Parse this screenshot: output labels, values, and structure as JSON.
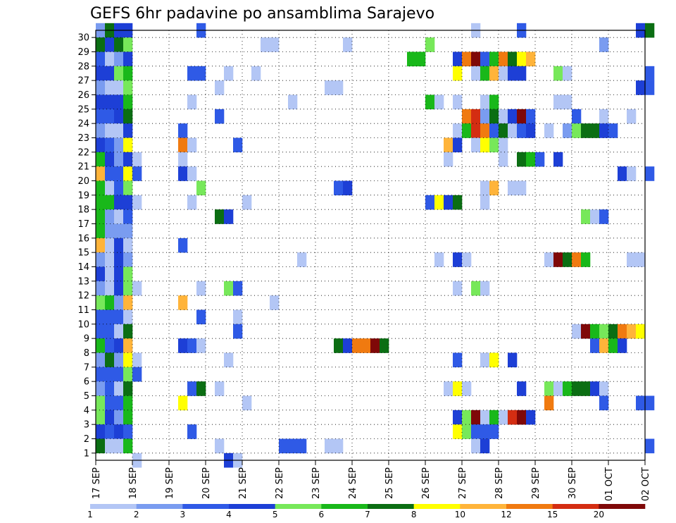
{
  "chart_data": {
    "type": "heatmap",
    "title": "GEFS 6hr padavine po ansamblima Sarajevo",
    "xlabel": "",
    "ylabel": "",
    "x_tick_labels": [
      "17 SEP",
      "18 SEP",
      "19 SEP",
      "20 SEP",
      "21 SEP",
      "22 SEP",
      "23 SEP",
      "24 SEP",
      "25 SEP",
      "26 SEP",
      "27 SEP",
      "28 SEP",
      "29 SEP",
      "30 SEP",
      "01 OCT",
      "02 OCT"
    ],
    "y_tick_labels": [
      "1",
      "2",
      "3",
      "4",
      "5",
      "6",
      "7",
      "8",
      "9",
      "10",
      "11",
      "12",
      "13",
      "14",
      "15",
      "16",
      "17",
      "18",
      "19",
      "20",
      "21",
      "22",
      "23",
      "24",
      "25",
      "26",
      "27",
      "28",
      "29",
      "30"
    ],
    "ylim": [
      1,
      30
    ],
    "x_range": [
      "17 SEP",
      "02 OCT"
    ],
    "steps_per_day": 4,
    "grid": true,
    "legend_placement": "bottom",
    "colorbar": {
      "labels": [
        "1",
        "2",
        "3",
        "4",
        "5",
        "6",
        "7",
        "8",
        "10",
        "12",
        "15",
        "20"
      ],
      "colors": [
        "#b3c6f5",
        "#7a9cf0",
        "#2f5ae6",
        "#1d3fd6",
        "#77e85a",
        "#19b81a",
        "#0b6e13",
        "#ffff00",
        "#ffb43a",
        "#f07a10",
        "#d42d12",
        "#7f0808"
      ]
    },
    "cells": [
      [
        30,
        0,
        1
      ],
      [
        30,
        1,
        6
      ],
      [
        30,
        2,
        3
      ],
      [
        30,
        3,
        3
      ],
      [
        30,
        11,
        2
      ],
      [
        30,
        41,
        0
      ],
      [
        30,
        46,
        2
      ],
      [
        30,
        59,
        3
      ],
      [
        30,
        60,
        6
      ],
      [
        29,
        0,
        6
      ],
      [
        29,
        1,
        3
      ],
      [
        29,
        2,
        6
      ],
      [
        29,
        3,
        4
      ],
      [
        29,
        18,
        0
      ],
      [
        29,
        19,
        0
      ],
      [
        29,
        27,
        0
      ],
      [
        29,
        36,
        4
      ],
      [
        29,
        55,
        1
      ],
      [
        28,
        0,
        2
      ],
      [
        28,
        1,
        0
      ],
      [
        28,
        2,
        1
      ],
      [
        28,
        3,
        3
      ],
      [
        28,
        34,
        5
      ],
      [
        28,
        35,
        5
      ],
      [
        28,
        39,
        3
      ],
      [
        28,
        40,
        9
      ],
      [
        28,
        41,
        11
      ],
      [
        28,
        42,
        2
      ],
      [
        28,
        43,
        5
      ],
      [
        28,
        44,
        9
      ],
      [
        28,
        45,
        6
      ],
      [
        28,
        46,
        7
      ],
      [
        28,
        47,
        8
      ],
      [
        27,
        0,
        3
      ],
      [
        27,
        1,
        3
      ],
      [
        27,
        2,
        4
      ],
      [
        27,
        3,
        5
      ],
      [
        27,
        10,
        2
      ],
      [
        27,
        11,
        2
      ],
      [
        27,
        14,
        0
      ],
      [
        27,
        17,
        0
      ],
      [
        27,
        39,
        7
      ],
      [
        27,
        41,
        0
      ],
      [
        27,
        42,
        5
      ],
      [
        27,
        43,
        8
      ],
      [
        27,
        44,
        0
      ],
      [
        27,
        45,
        3
      ],
      [
        27,
        46,
        3
      ],
      [
        27,
        50,
        4
      ],
      [
        27,
        51,
        0
      ],
      [
        27,
        60,
        2
      ],
      [
        26,
        0,
        1
      ],
      [
        26,
        1,
        0
      ],
      [
        26,
        2,
        0
      ],
      [
        26,
        3,
        4
      ],
      [
        26,
        13,
        0
      ],
      [
        26,
        25,
        0
      ],
      [
        26,
        26,
        0
      ],
      [
        26,
        59,
        3
      ],
      [
        26,
        60,
        2
      ],
      [
        25,
        0,
        3
      ],
      [
        25,
        1,
        3
      ],
      [
        25,
        2,
        3
      ],
      [
        25,
        3,
        5
      ],
      [
        25,
        10,
        0
      ],
      [
        25,
        21,
        0
      ],
      [
        25,
        36,
        5
      ],
      [
        25,
        37,
        0
      ],
      [
        25,
        39,
        0
      ],
      [
        25,
        42,
        0
      ],
      [
        25,
        43,
        5
      ],
      [
        25,
        50,
        0
      ],
      [
        25,
        51,
        0
      ],
      [
        24,
        0,
        2
      ],
      [
        24,
        1,
        2
      ],
      [
        24,
        2,
        3
      ],
      [
        24,
        3,
        6
      ],
      [
        24,
        13,
        2
      ],
      [
        24,
        40,
        9
      ],
      [
        24,
        41,
        10
      ],
      [
        24,
        42,
        1
      ],
      [
        24,
        43,
        6
      ],
      [
        24,
        44,
        0
      ],
      [
        24,
        45,
        3
      ],
      [
        24,
        46,
        11
      ],
      [
        24,
        47,
        2
      ],
      [
        24,
        52,
        2
      ],
      [
        24,
        55,
        0
      ],
      [
        24,
        58,
        0
      ],
      [
        23,
        0,
        1
      ],
      [
        23,
        1,
        0
      ],
      [
        23,
        2,
        0
      ],
      [
        23,
        3,
        3
      ],
      [
        23,
        9,
        2
      ],
      [
        23,
        39,
        0
      ],
      [
        23,
        40,
        5
      ],
      [
        23,
        41,
        10
      ],
      [
        23,
        42,
        9
      ],
      [
        23,
        43,
        2
      ],
      [
        23,
        44,
        6
      ],
      [
        23,
        45,
        0
      ],
      [
        23,
        46,
        2
      ],
      [
        23,
        47,
        3
      ],
      [
        23,
        49,
        0
      ],
      [
        23,
        51,
        1
      ],
      [
        23,
        52,
        4
      ],
      [
        23,
        53,
        6
      ],
      [
        23,
        54,
        6
      ],
      [
        23,
        55,
        3
      ],
      [
        23,
        56,
        2
      ],
      [
        22,
        0,
        3
      ],
      [
        22,
        1,
        2
      ],
      [
        22,
        2,
        1
      ],
      [
        22,
        3,
        7
      ],
      [
        22,
        9,
        9
      ],
      [
        22,
        10,
        0
      ],
      [
        22,
        15,
        2
      ],
      [
        22,
        38,
        8
      ],
      [
        22,
        39,
        3
      ],
      [
        22,
        41,
        0
      ],
      [
        22,
        42,
        7
      ],
      [
        22,
        43,
        4
      ],
      [
        22,
        44,
        0
      ],
      [
        21,
        0,
        5
      ],
      [
        21,
        1,
        3
      ],
      [
        21,
        2,
        1
      ],
      [
        21,
        3,
        3
      ],
      [
        21,
        4,
        0
      ],
      [
        21,
        9,
        0
      ],
      [
        21,
        38,
        0
      ],
      [
        21,
        44,
        0
      ],
      [
        21,
        46,
        6
      ],
      [
        21,
        47,
        5
      ],
      [
        21,
        48,
        2
      ],
      [
        21,
        50,
        3
      ],
      [
        20,
        0,
        8
      ],
      [
        20,
        1,
        2
      ],
      [
        20,
        2,
        2
      ],
      [
        20,
        3,
        7
      ],
      [
        20,
        4,
        2
      ],
      [
        20,
        9,
        3
      ],
      [
        20,
        10,
        0
      ],
      [
        20,
        57,
        3
      ],
      [
        20,
        58,
        0
      ],
      [
        20,
        60,
        2
      ],
      [
        19,
        0,
        5
      ],
      [
        19,
        1,
        0
      ],
      [
        19,
        2,
        2
      ],
      [
        19,
        3,
        4
      ],
      [
        19,
        11,
        4
      ],
      [
        19,
        26,
        2
      ],
      [
        19,
        27,
        3
      ],
      [
        19,
        42,
        0
      ],
      [
        19,
        43,
        8
      ],
      [
        19,
        45,
        0
      ],
      [
        19,
        46,
        0
      ],
      [
        18,
        0,
        5
      ],
      [
        18,
        1,
        5
      ],
      [
        18,
        2,
        3
      ],
      [
        18,
        3,
        3
      ],
      [
        18,
        4,
        0
      ],
      [
        18,
        10,
        0
      ],
      [
        18,
        16,
        0
      ],
      [
        18,
        36,
        2
      ],
      [
        18,
        37,
        7
      ],
      [
        18,
        38,
        3
      ],
      [
        18,
        39,
        6
      ],
      [
        18,
        42,
        0
      ],
      [
        17,
        0,
        5
      ],
      [
        17,
        1,
        1
      ],
      [
        17,
        2,
        0
      ],
      [
        17,
        3,
        2
      ],
      [
        17,
        13,
        6
      ],
      [
        17,
        14,
        3
      ],
      [
        17,
        53,
        4
      ],
      [
        17,
        54,
        0
      ],
      [
        17,
        55,
        2
      ],
      [
        16,
        0,
        5
      ],
      [
        16,
        1,
        1
      ],
      [
        16,
        2,
        1
      ],
      [
        16,
        3,
        1
      ],
      [
        15,
        0,
        8
      ],
      [
        15,
        1,
        0
      ],
      [
        15,
        2,
        3
      ],
      [
        15,
        3,
        0
      ],
      [
        15,
        9,
        2
      ],
      [
        14,
        0,
        1
      ],
      [
        14,
        1,
        0
      ],
      [
        14,
        2,
        3
      ],
      [
        14,
        3,
        1
      ],
      [
        14,
        22,
        0
      ],
      [
        14,
        37,
        0
      ],
      [
        14,
        39,
        3
      ],
      [
        14,
        40,
        0
      ],
      [
        14,
        49,
        0
      ],
      [
        14,
        50,
        11
      ],
      [
        14,
        51,
        6
      ],
      [
        14,
        52,
        9
      ],
      [
        14,
        53,
        5
      ],
      [
        14,
        58,
        0
      ],
      [
        14,
        59,
        0
      ],
      [
        13,
        0,
        3
      ],
      [
        13,
        1,
        0
      ],
      [
        13,
        2,
        3
      ],
      [
        13,
        3,
        4
      ],
      [
        12,
        0,
        1
      ],
      [
        12,
        1,
        0
      ],
      [
        12,
        2,
        3
      ],
      [
        12,
        3,
        4
      ],
      [
        12,
        4,
        0
      ],
      [
        12,
        11,
        0
      ],
      [
        12,
        14,
        4
      ],
      [
        12,
        15,
        2
      ],
      [
        12,
        39,
        0
      ],
      [
        12,
        41,
        4
      ],
      [
        12,
        42,
        0
      ],
      [
        11,
        0,
        4
      ],
      [
        11,
        1,
        5
      ],
      [
        11,
        2,
        1
      ],
      [
        11,
        3,
        8
      ],
      [
        11,
        9,
        8
      ],
      [
        11,
        19,
        0
      ],
      [
        10,
        0,
        2
      ],
      [
        10,
        1,
        2
      ],
      [
        10,
        2,
        2
      ],
      [
        10,
        3,
        0
      ],
      [
        10,
        11,
        2
      ],
      [
        10,
        15,
        0
      ],
      [
        9,
        0,
        2
      ],
      [
        9,
        1,
        2
      ],
      [
        9,
        2,
        0
      ],
      [
        9,
        3,
        6
      ],
      [
        9,
        15,
        2
      ],
      [
        9,
        52,
        0
      ],
      [
        9,
        53,
        11
      ],
      [
        9,
        54,
        5
      ],
      [
        9,
        55,
        4
      ],
      [
        9,
        56,
        6
      ],
      [
        9,
        57,
        9
      ],
      [
        9,
        58,
        8
      ],
      [
        9,
        59,
        7
      ],
      [
        8,
        0,
        5
      ],
      [
        8,
        1,
        2
      ],
      [
        8,
        2,
        3
      ],
      [
        8,
        3,
        8
      ],
      [
        8,
        9,
        3
      ],
      [
        8,
        10,
        2
      ],
      [
        8,
        11,
        0
      ],
      [
        8,
        26,
        6
      ],
      [
        8,
        27,
        3
      ],
      [
        8,
        28,
        9
      ],
      [
        8,
        29,
        9
      ],
      [
        8,
        30,
        11
      ],
      [
        8,
        31,
        6
      ],
      [
        8,
        54,
        2
      ],
      [
        8,
        55,
        8
      ],
      [
        8,
        56,
        5
      ],
      [
        8,
        57,
        3
      ],
      [
        7,
        0,
        1
      ],
      [
        7,
        1,
        6
      ],
      [
        7,
        2,
        1
      ],
      [
        7,
        3,
        7
      ],
      [
        7,
        4,
        0
      ],
      [
        7,
        14,
        0
      ],
      [
        7,
        39,
        2
      ],
      [
        7,
        42,
        0
      ],
      [
        7,
        43,
        7
      ],
      [
        7,
        45,
        3
      ],
      [
        6,
        0,
        2
      ],
      [
        6,
        1,
        2
      ],
      [
        6,
        2,
        2
      ],
      [
        6,
        3,
        4
      ],
      [
        6,
        4,
        2
      ],
      [
        5,
        0,
        1
      ],
      [
        5,
        1,
        2
      ],
      [
        5,
        2,
        0
      ],
      [
        5,
        3,
        6
      ],
      [
        5,
        10,
        2
      ],
      [
        5,
        11,
        6
      ],
      [
        5,
        13,
        0
      ],
      [
        5,
        38,
        0
      ],
      [
        5,
        39,
        7
      ],
      [
        5,
        40,
        0
      ],
      [
        5,
        46,
        3
      ],
      [
        5,
        49,
        4
      ],
      [
        5,
        50,
        0
      ],
      [
        5,
        51,
        5
      ],
      [
        5,
        52,
        6
      ],
      [
        5,
        53,
        6
      ],
      [
        5,
        54,
        3
      ],
      [
        5,
        55,
        0
      ],
      [
        4,
        0,
        4
      ],
      [
        4,
        1,
        2
      ],
      [
        4,
        2,
        2
      ],
      [
        4,
        3,
        5
      ],
      [
        4,
        9,
        7
      ],
      [
        4,
        16,
        0
      ],
      [
        4,
        49,
        9
      ],
      [
        4,
        55,
        2
      ],
      [
        4,
        59,
        2
      ],
      [
        4,
        60,
        2
      ],
      [
        3,
        0,
        4
      ],
      [
        3,
        1,
        3
      ],
      [
        3,
        2,
        1
      ],
      [
        3,
        3,
        5
      ],
      [
        3,
        39,
        3
      ],
      [
        3,
        40,
        4
      ],
      [
        3,
        41,
        11
      ],
      [
        3,
        42,
        0
      ],
      [
        3,
        43,
        5
      ],
      [
        3,
        44,
        0
      ],
      [
        3,
        45,
        10
      ],
      [
        3,
        46,
        11
      ],
      [
        3,
        47,
        3
      ],
      [
        2,
        0,
        3
      ],
      [
        2,
        1,
        2
      ],
      [
        2,
        2,
        3
      ],
      [
        2,
        3,
        2
      ],
      [
        2,
        10,
        2
      ],
      [
        2,
        39,
        7
      ],
      [
        2,
        40,
        4
      ],
      [
        2,
        41,
        2
      ],
      [
        2,
        42,
        2
      ],
      [
        2,
        43,
        2
      ],
      [
        1,
        0,
        6
      ],
      [
        1,
        1,
        0
      ],
      [
        1,
        2,
        0
      ],
      [
        1,
        3,
        5
      ],
      [
        1,
        13,
        0
      ],
      [
        1,
        20,
        2
      ],
      [
        1,
        21,
        2
      ],
      [
        1,
        22,
        2
      ],
      [
        1,
        25,
        0
      ],
      [
        1,
        26,
        0
      ],
      [
        1,
        41,
        0
      ],
      [
        1,
        42,
        3
      ],
      [
        1,
        60,
        2
      ],
      [
        0,
        14,
        3
      ],
      [
        0,
        15,
        0
      ],
      [
        0,
        4,
        0
      ]
    ]
  }
}
